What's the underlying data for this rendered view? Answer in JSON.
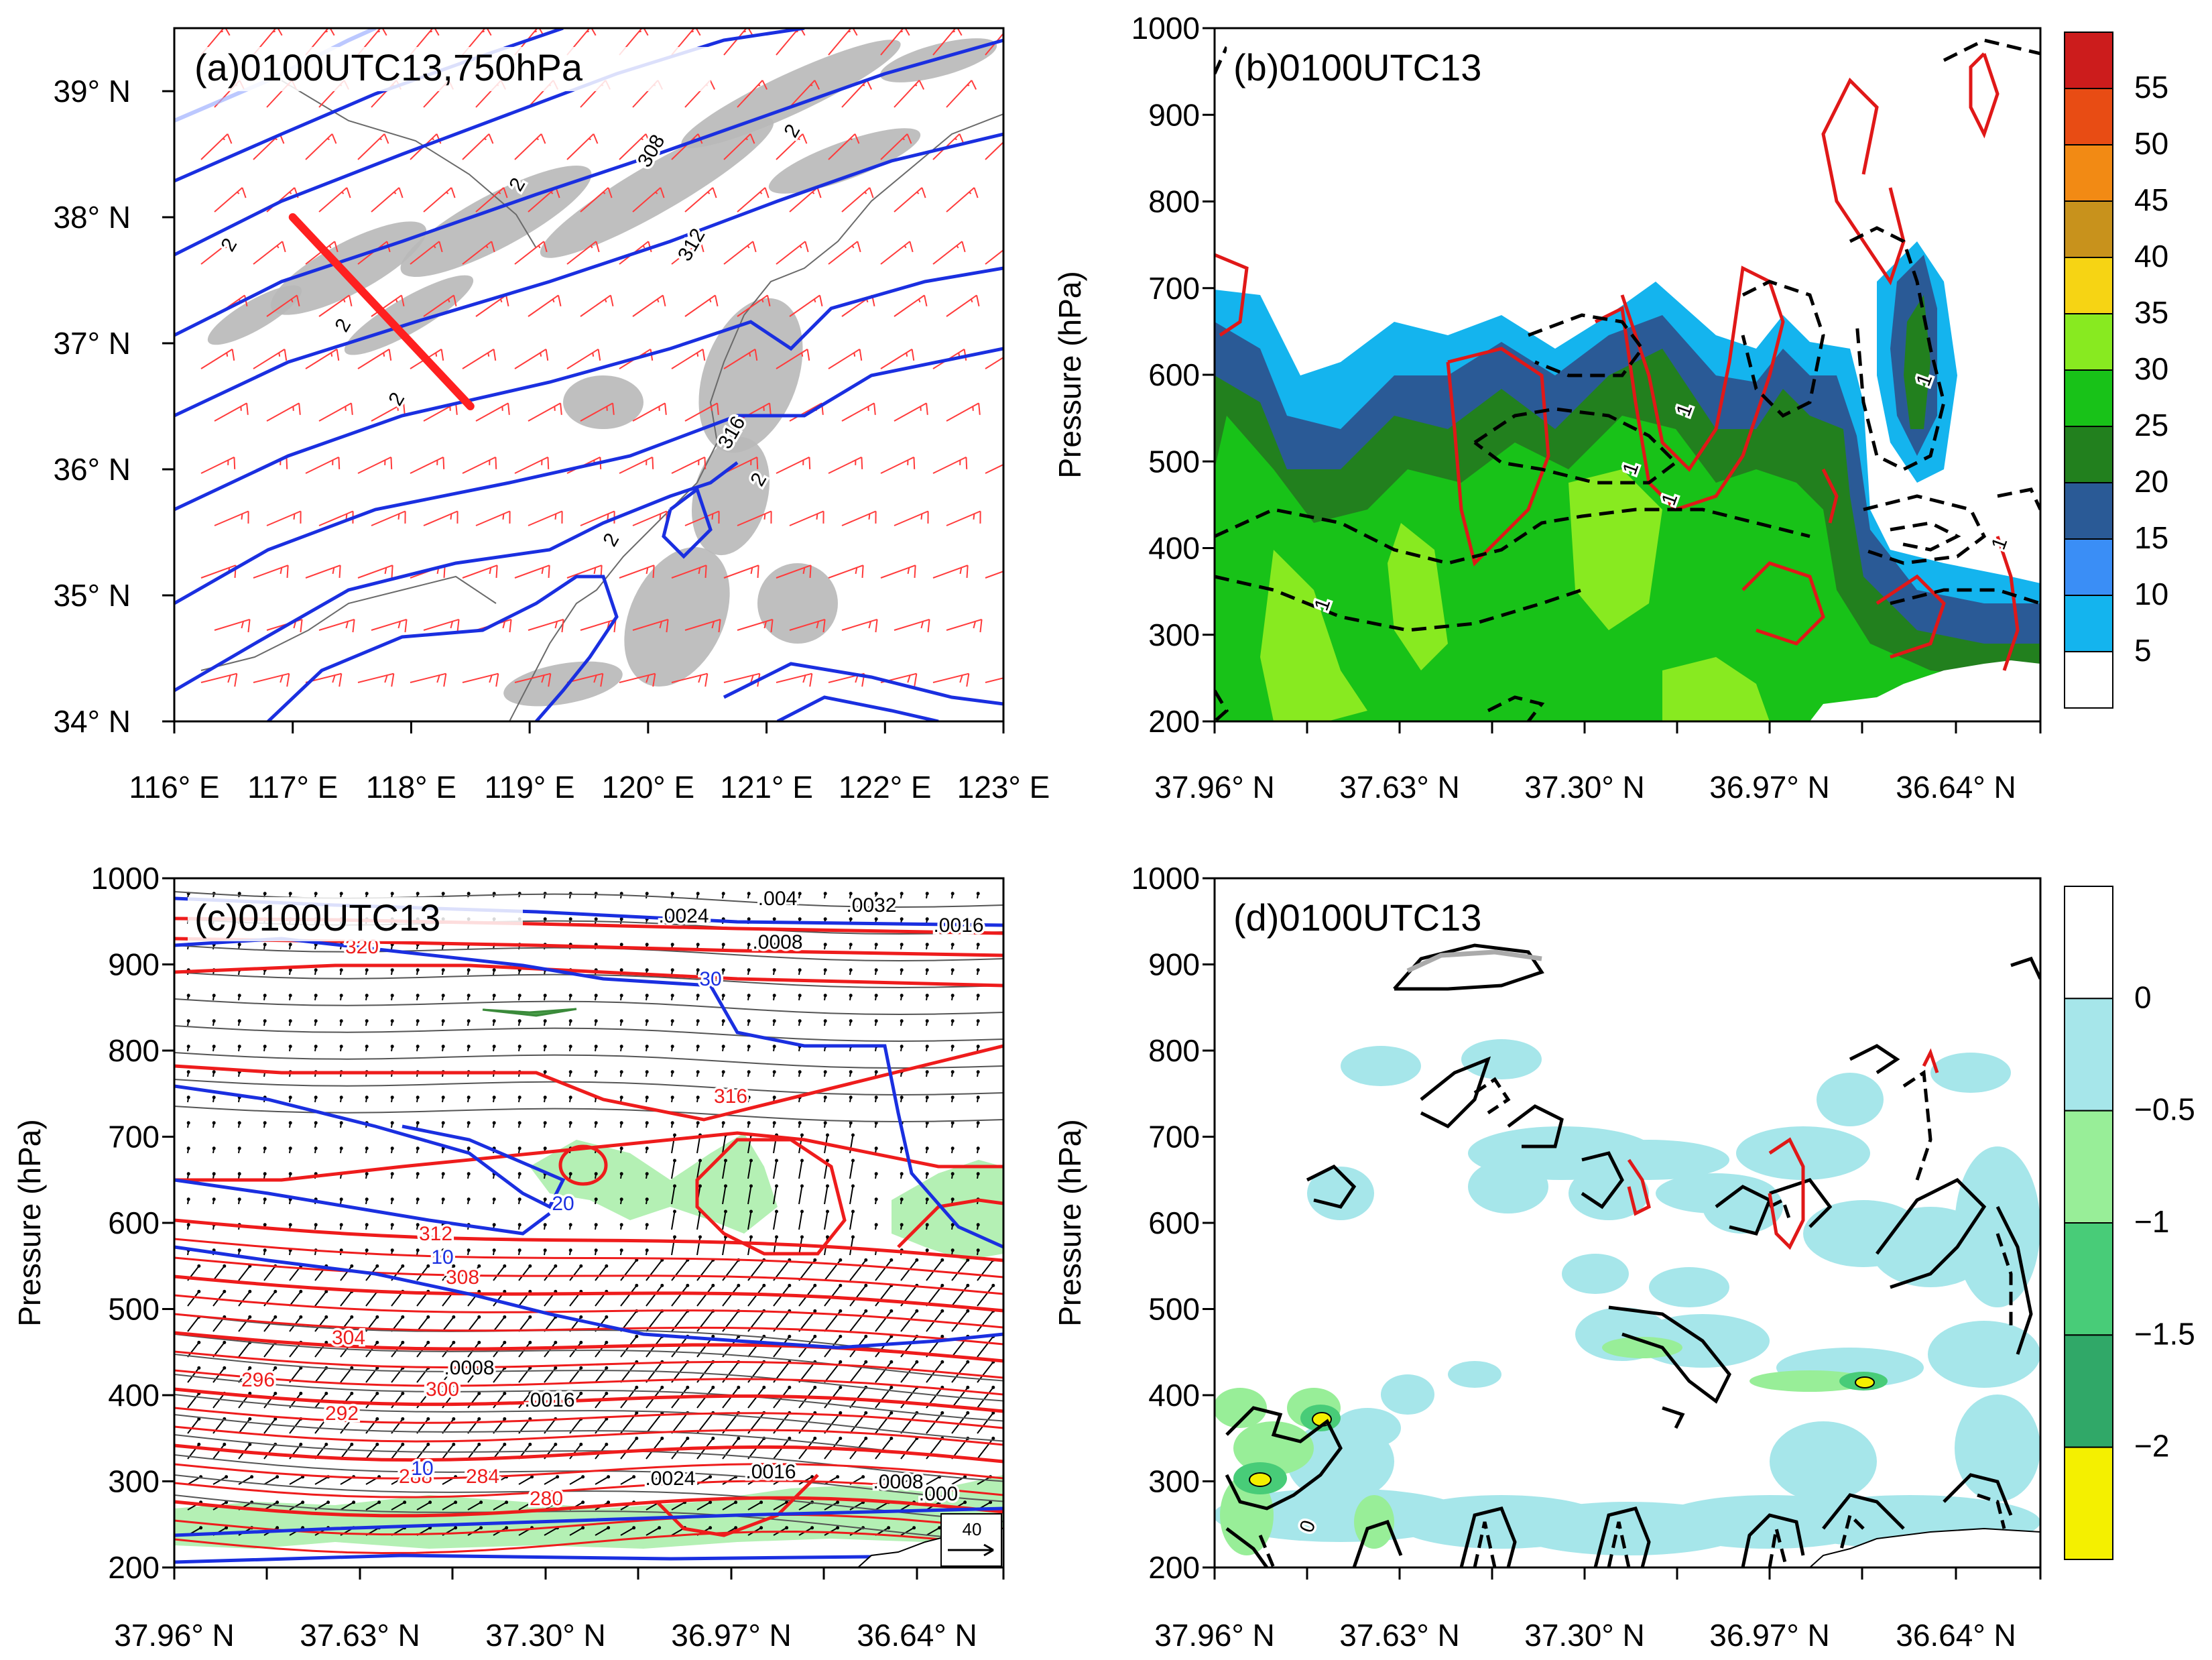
{
  "chart_data": [
    {
      "id": "a",
      "type": "contour-map",
      "title": "(a)0100UTC13,750hPa",
      "x_ticks": [
        "116° E",
        "117° E",
        "118° E",
        "119° E",
        "120° E",
        "121° E",
        "122° E",
        "123° E"
      ],
      "y_ticks": [
        "34° N",
        "35° N",
        "36° N",
        "37° N",
        "38° N",
        "39° N"
      ],
      "xlim": [
        116,
        123
      ],
      "ylim": [
        34,
        39.5
      ],
      "contour_labels": [
        "2",
        "2",
        "2",
        "2",
        "2",
        "2",
        "2",
        "308",
        "312",
        "316"
      ],
      "cross_section": {
        "start_lon": 117.0,
        "start_lat": 38.0,
        "end_lon": 118.5,
        "end_lat": 36.5
      },
      "colors": {
        "contour": "#1a2fe0",
        "barb": "#ff3b3b",
        "section": "#ff2020",
        "shade": "#b8b8b8"
      }
    },
    {
      "id": "b",
      "type": "filled-contour-section",
      "title": "(b)0100UTC13",
      "ylabel": "Pressure (hPa)",
      "x_ticks": [
        "37.96° N",
        "37.63° N",
        "37.30° N",
        "36.97° N",
        "36.64° N"
      ],
      "y_ticks": [
        "1000",
        "900",
        "800",
        "700",
        "600",
        "500",
        "400",
        "300",
        "200"
      ],
      "ylim": [
        200,
        1000
      ],
      "contour_labels": [
        "1",
        "1",
        "1",
        "1",
        "1",
        "1"
      ],
      "colorbar": {
        "labels": [
          "55",
          "50",
          "45",
          "40",
          "35",
          "30",
          "25",
          "20",
          "15",
          "10",
          "5"
        ],
        "levels": [
          5,
          10,
          15,
          20,
          25,
          30,
          35,
          40,
          45,
          50,
          55
        ],
        "colors": [
          "#ffffff",
          "#14b4ee",
          "#3a8ef6",
          "#2a5a96",
          "#22801e",
          "#18c218",
          "#88ea20",
          "#f6d414",
          "#c8921c",
          "#f28a14",
          "#e84c14",
          "#cc1c1c"
        ]
      }
    },
    {
      "id": "c",
      "type": "contour-vector-section",
      "title": "(c)0100UTC13",
      "ylabel": "Pressure (hPa)",
      "x_ticks": [
        "37.96° N",
        "37.63° N",
        "37.30° N",
        "36.97° N",
        "36.64° N"
      ],
      "y_ticks": [
        "1000",
        "900",
        "800",
        "700",
        "600",
        "500",
        "400",
        "300",
        "200"
      ],
      "ylim": [
        200,
        1000
      ],
      "red_contour_labels": [
        "320",
        "316",
        "312",
        "308",
        "304",
        "300",
        "296",
        "292",
        "288",
        "284",
        "280"
      ],
      "blue_contour_labels": [
        "30",
        "20",
        "10",
        "10"
      ],
      "black_contour_labels": [
        ".0024",
        ".004",
        ".0032",
        ".0016",
        ".0008",
        ".0008",
        ".0016",
        ".0024",
        ".0016",
        ".0008",
        ".000"
      ],
      "reference_vector": "40",
      "colors": {
        "theta": "#ee1c1c",
        "wind": "#1a2fe0",
        "shade": "#b4f0b4"
      }
    },
    {
      "id": "d",
      "type": "filled-contour-section",
      "title": "(d)0100UTC13",
      "ylabel": "Pressure (hPa)",
      "x_ticks": [
        "37.96° N",
        "37.63° N",
        "37.30° N",
        "36.97° N",
        "36.64° N"
      ],
      "y_ticks": [
        "1000",
        "900",
        "800",
        "700",
        "600",
        "500",
        "400",
        "300",
        "200"
      ],
      "ylim": [
        200,
        1000
      ],
      "contour_labels": [
        "0"
      ],
      "colorbar": {
        "labels": [
          "0",
          "−0.5",
          "−1",
          "−1.5",
          "−2"
        ],
        "levels": [
          0,
          -0.5,
          -1,
          -1.5,
          -2
        ],
        "colors": [
          "#ffffff",
          "#a6e6ea",
          "#98ee98",
          "#48cc78",
          "#30a868",
          "#f4f000"
        ]
      }
    }
  ]
}
